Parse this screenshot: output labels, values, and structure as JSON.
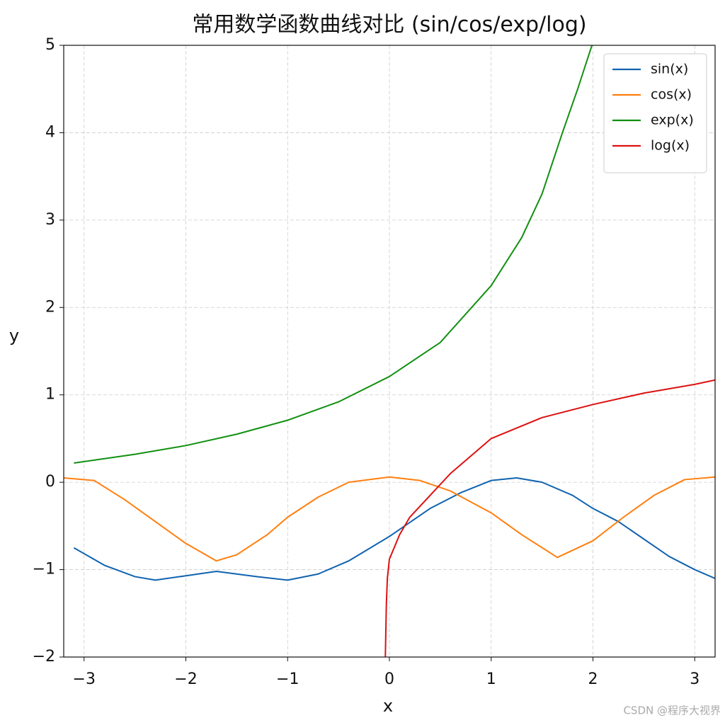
{
  "chart_data": {
    "type": "line",
    "title": "常用数学函数曲线对比 (sin/cos/exp/log)",
    "x_label": "x",
    "y_label": "y",
    "xlim": [
      -3.2,
      3.2
    ],
    "ylim": [
      -2,
      5
    ],
    "xticks": [
      {
        "value": -3,
        "label": "−3"
      },
      {
        "value": -2,
        "label": "−2"
      },
      {
        "value": -1,
        "label": "−1"
      },
      0,
      1,
      2,
      3
    ],
    "yticks": [
      {
        "value": -2,
        "label": "−2"
      },
      {
        "value": -1,
        "label": "−1"
      },
      0,
      1,
      2,
      3,
      4,
      5
    ],
    "grid": true,
    "legend": "upper right",
    "series": [
      {
        "name": "sin(x)",
        "color": "#1063b0",
        "x": [
          -3.1,
          -2.8,
          -2.5,
          -2.3,
          -2.0,
          -1.7,
          -1.3,
          -1.0,
          -0.7,
          -0.4,
          0,
          0.4,
          0.7,
          1.0,
          1.25,
          1.5,
          1.8,
          2.0,
          2.25,
          2.5,
          2.75,
          3.0,
          3.2
        ],
        "values": [
          -0.75,
          -0.95,
          -1.08,
          -1.12,
          -1.07,
          -1.02,
          -1.08,
          -1.12,
          -1.05,
          -0.9,
          -0.62,
          -0.3,
          -0.12,
          0.02,
          0.05,
          0.0,
          -0.15,
          -0.3,
          -0.45,
          -0.65,
          -0.85,
          -1.0,
          -1.1
        ]
      },
      {
        "name": "cos(x)",
        "color": "#ff7f0e",
        "x": [
          -3.2,
          -2.9,
          -2.6,
          -2.3,
          -2.0,
          -1.7,
          -1.5,
          -1.2,
          -1.0,
          -0.7,
          -0.4,
          0,
          0.3,
          0.6,
          1.0,
          1.3,
          1.65,
          2.0,
          2.3,
          2.6,
          2.9,
          3.2
        ],
        "values": [
          0.05,
          0.02,
          -0.2,
          -0.45,
          -0.7,
          -0.9,
          -0.83,
          -0.6,
          -0.4,
          -0.17,
          0.0,
          0.06,
          0.02,
          -0.1,
          -0.35,
          -0.6,
          -0.86,
          -0.67,
          -0.4,
          -0.15,
          0.03,
          0.06
        ]
      },
      {
        "name": "exp(x)",
        "color": "#119011",
        "x": [
          -3.1,
          -2.5,
          -2.0,
          -1.5,
          -1.0,
          -0.5,
          0,
          0.5,
          1.0,
          1.3,
          1.5,
          1.7,
          1.85,
          1.99
        ],
        "values": [
          0.22,
          0.32,
          0.42,
          0.55,
          0.71,
          0.92,
          1.21,
          1.6,
          2.25,
          2.8,
          3.3,
          4.0,
          4.5,
          5.0
        ]
      },
      {
        "name": "log(x)",
        "color": "#dd1111",
        "x": [
          -0.04,
          -0.03,
          -0.02,
          0,
          0.1,
          0.2,
          0.4,
          0.6,
          1.0,
          1.5,
          2.0,
          2.5,
          3.0,
          3.2
        ],
        "values": [
          -2.0,
          -1.4,
          -1.1,
          -0.88,
          -0.6,
          -0.4,
          -0.15,
          0.1,
          0.5,
          0.74,
          0.89,
          1.02,
          1.12,
          1.17
        ]
      }
    ]
  },
  "watermark": "CSDN @程序大视界"
}
